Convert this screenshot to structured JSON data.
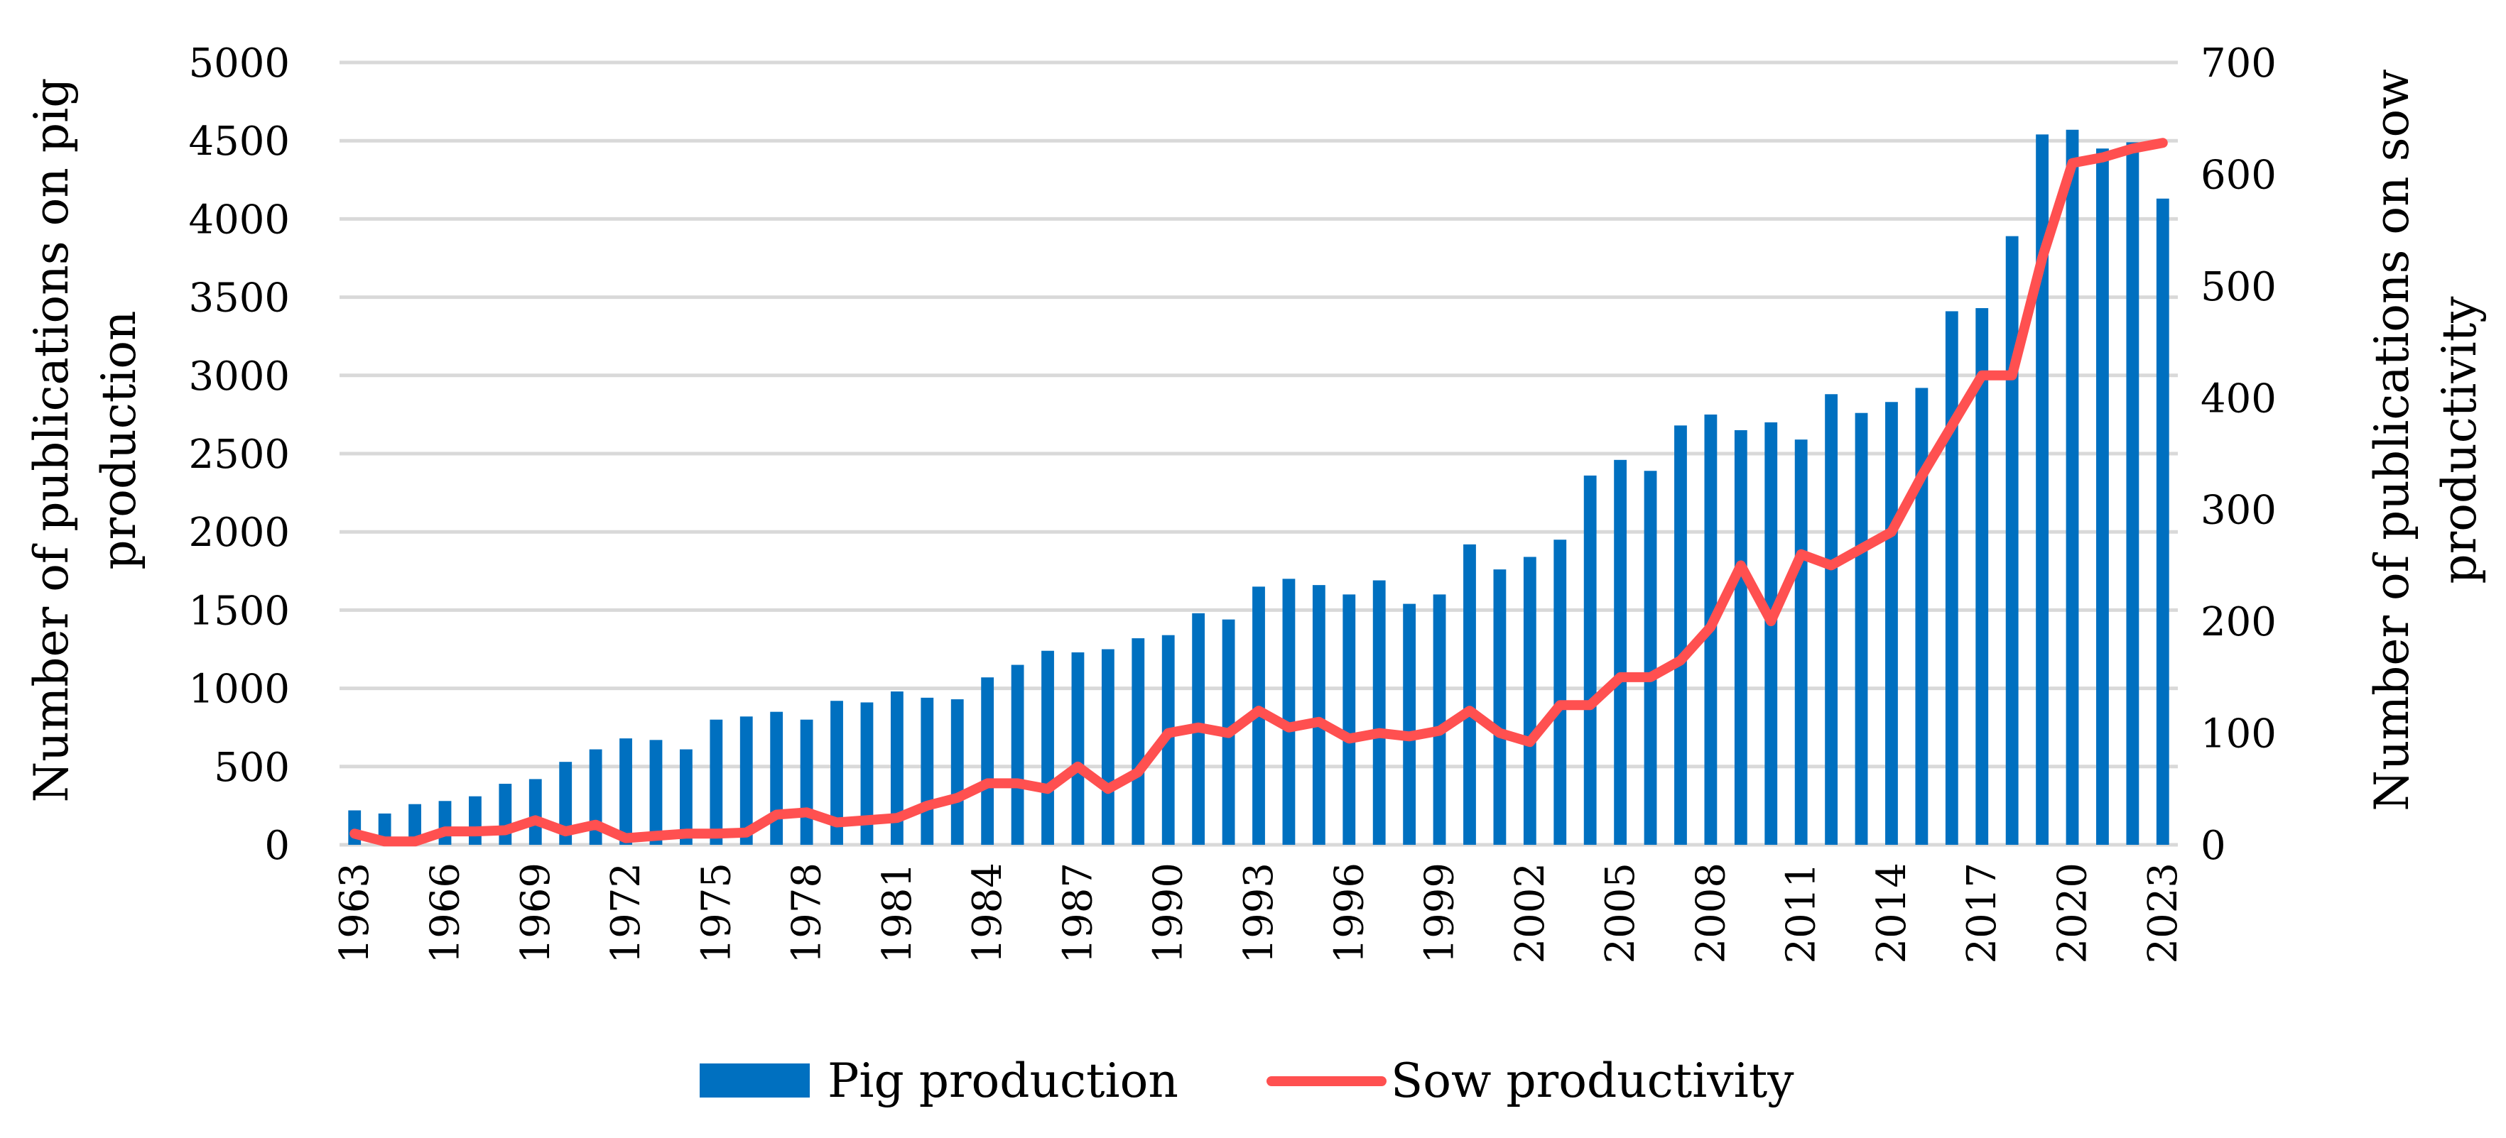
{
  "chart_data": {
    "type": "bar-line",
    "title": "",
    "x": [
      1963,
      1964,
      1965,
      1966,
      1967,
      1968,
      1969,
      1970,
      1971,
      1972,
      1973,
      1974,
      1975,
      1976,
      1977,
      1978,
      1979,
      1980,
      1981,
      1982,
      1983,
      1984,
      1985,
      1986,
      1987,
      1988,
      1989,
      1990,
      1991,
      1992,
      1993,
      1994,
      1995,
      1996,
      1997,
      1998,
      1999,
      2000,
      2001,
      2002,
      2003,
      2004,
      2005,
      2006,
      2007,
      2008,
      2009,
      2010,
      2011,
      2012,
      2013,
      2014,
      2015,
      2016,
      2017,
      2018,
      2019,
      2020,
      2021,
      2022,
      2023
    ],
    "x_tick_labels": [
      "1963",
      "1966",
      "1969",
      "1972",
      "1975",
      "1978",
      "1981",
      "1984",
      "1987",
      "1990",
      "1993",
      "1996",
      "1999",
      "2002",
      "2005",
      "2008",
      "2011",
      "2014",
      "2017",
      "2020",
      "2023"
    ],
    "series": [
      {
        "name": "Pig production",
        "type": "bar",
        "axis": "left",
        "color": "#0070C0",
        "values": [
          220,
          200,
          260,
          280,
          310,
          390,
          420,
          530,
          610,
          680,
          670,
          610,
          800,
          820,
          850,
          800,
          920,
          910,
          980,
          940,
          930,
          1070,
          1150,
          1240,
          1230,
          1250,
          1320,
          1340,
          1480,
          1440,
          1650,
          1700,
          1660,
          1600,
          1690,
          1540,
          1600,
          1920,
          1760,
          1840,
          1950,
          2360,
          2460,
          2390,
          2680,
          2750,
          2650,
          2700,
          2590,
          2880,
          2760,
          2830,
          2920,
          3410,
          3430,
          3890,
          4540,
          4570,
          4450,
          4490,
          4130
        ]
      },
      {
        "name": "Sow productivity",
        "type": "line",
        "axis": "right",
        "color": "#FF5050",
        "values": [
          10,
          3,
          3,
          12,
          12,
          13,
          22,
          12,
          18,
          6,
          8,
          10,
          10,
          11,
          27,
          29,
          20,
          22,
          24,
          35,
          42,
          55,
          55,
          50,
          70,
          50,
          65,
          100,
          105,
          100,
          120,
          105,
          110,
          95,
          100,
          97,
          102,
          120,
          100,
          92,
          125,
          125,
          150,
          150,
          165,
          195,
          250,
          200,
          260,
          250,
          265,
          280,
          330,
          375,
          420,
          420,
          525,
          610,
          615,
          623,
          628
        ]
      }
    ],
    "y_left": {
      "label": "Number of publications on pig production",
      "label_lines": [
        "Number of publications on pig",
        "production"
      ],
      "range": [
        0,
        5000
      ],
      "ticks": [
        "0",
        "500",
        "1000",
        "1500",
        "2000",
        "2500",
        "3000",
        "3500",
        "4000",
        "4500",
        "5000"
      ]
    },
    "y_right": {
      "label": "Number of publications on sow productivity",
      "label_lines": [
        "Number of publications on sow",
        "productivity"
      ],
      "range": [
        0,
        700
      ],
      "ticks": [
        "0",
        "100",
        "200",
        "300",
        "400",
        "500",
        "600",
        "700"
      ]
    },
    "grid": true,
    "legend": {
      "position": "bottom",
      "entries": [
        "Pig production",
        "Sow productivity"
      ]
    }
  }
}
